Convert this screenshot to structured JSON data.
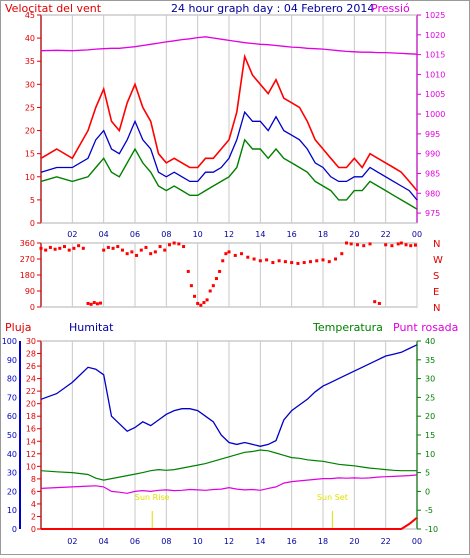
{
  "header": {
    "title": "24 hour graph day : 04 Febrero 2014",
    "left_label": "Velocitat del vent",
    "right_label": "Pressió"
  },
  "colors": {
    "gust": "#ff0000",
    "wind_avg": "#0000c8",
    "wind_low": "#008000",
    "pressure": "#e000e0",
    "direction": "#ff0000",
    "humidity": "#0000c8",
    "temperature": "#008000",
    "dewpoint": "#e000e0",
    "rain": "#ff0000",
    "sun_marker": "#e0e000",
    "grid": "#c8c8c8"
  },
  "x_ticks": [
    "02",
    "04",
    "06",
    "08",
    "10",
    "12",
    "14",
    "16",
    "18",
    "20",
    "22",
    "00"
  ],
  "chart_data": [
    {
      "type": "line",
      "name": "wind",
      "left_label": "Velocitat del vent",
      "right_label": "Pressió",
      "ylim": [
        0,
        45
      ],
      "y2lim": [
        972.5,
        1025
      ],
      "left_ticks": [
        "0",
        "5",
        "10",
        "15",
        "20",
        "25",
        "30",
        "35",
        "40",
        "45"
      ],
      "right_ticks": [
        "975",
        "980",
        "985",
        "990",
        "995",
        "1000",
        "1005",
        "1010",
        "1015",
        "1020",
        "1025"
      ],
      "x_hours": [
        0,
        1,
        2,
        3,
        3.5,
        4,
        4.5,
        5,
        5.5,
        6,
        6.5,
        7,
        7.5,
        8,
        8.5,
        9,
        9.5,
        10,
        10.5,
        11,
        11.5,
        12,
        12.5,
        13,
        13.5,
        14,
        14.5,
        15,
        15.5,
        16,
        16.5,
        17,
        17.5,
        18,
        18.5,
        19,
        19.5,
        20,
        20.5,
        21,
        21.5,
        22,
        22.5,
        23,
        23.5,
        24
      ],
      "series": [
        {
          "key": "gust",
          "values": [
            14,
            16,
            14,
            20,
            25,
            29,
            22,
            20,
            26,
            30,
            25,
            22,
            15,
            13,
            14,
            13,
            12,
            12,
            14,
            14,
            16,
            18,
            24,
            36,
            32,
            30,
            28,
            31,
            27,
            26,
            25,
            22,
            18,
            16,
            14,
            12,
            12,
            14,
            12,
            15,
            14,
            13,
            12,
            11,
            9,
            7
          ]
        },
        {
          "key": "wind_avg",
          "values": [
            11,
            12,
            12,
            14,
            18,
            20,
            16,
            15,
            18,
            22,
            18,
            16,
            11,
            10,
            11,
            10,
            9,
            9,
            11,
            11,
            12,
            14,
            18,
            24,
            22,
            22,
            20,
            23,
            20,
            19,
            18,
            16,
            13,
            12,
            10,
            9,
            9,
            10,
            10,
            12,
            11,
            10,
            9,
            8,
            7,
            5
          ]
        },
        {
          "key": "wind_low",
          "values": [
            9,
            10,
            9,
            10,
            12,
            14,
            11,
            10,
            13,
            16,
            13,
            11,
            8,
            7,
            8,
            7,
            6,
            6,
            7,
            8,
            9,
            10,
            12,
            18,
            16,
            16,
            14,
            16,
            14,
            13,
            12,
            11,
            9,
            8,
            7,
            5,
            5,
            7,
            7,
            9,
            8,
            7,
            6,
            5,
            4,
            3
          ]
        },
        {
          "key": "pressure",
          "values": [
            1016.0,
            1016.1,
            1016.0,
            1016.2,
            1016.4,
            1016.5,
            1016.6,
            1016.6,
            1016.8,
            1017.0,
            1017.3,
            1017.6,
            1017.9,
            1018.2,
            1018.5,
            1018.8,
            1019.0,
            1019.3,
            1019.5,
            1019.2,
            1018.9,
            1018.6,
            1018.3,
            1018.0,
            1017.8,
            1017.6,
            1017.5,
            1017.3,
            1017.1,
            1016.9,
            1016.8,
            1016.6,
            1016.5,
            1016.4,
            1016.2,
            1016.0,
            1015.8,
            1015.7,
            1015.6,
            1015.6,
            1015.5,
            1015.5,
            1015.4,
            1015.3,
            1015.2,
            1015.1
          ]
        }
      ]
    },
    {
      "type": "scatter",
      "name": "direction",
      "ylim": [
        0,
        360
      ],
      "left_ticks": [
        "0",
        "90",
        "180",
        "270",
        "360"
      ],
      "right_labels": [
        "N",
        "W",
        "S",
        "E",
        "N"
      ],
      "points": [
        [
          0,
          330
        ],
        [
          0.3,
          320
        ],
        [
          0.6,
          335
        ],
        [
          0.9,
          325
        ],
        [
          1.2,
          330
        ],
        [
          1.5,
          340
        ],
        [
          1.8,
          320
        ],
        [
          2.1,
          330
        ],
        [
          2.4,
          345
        ],
        [
          2.7,
          330
        ],
        [
          3.0,
          20
        ],
        [
          3.2,
          15
        ],
        [
          3.4,
          25
        ],
        [
          3.6,
          18
        ],
        [
          3.8,
          22
        ],
        [
          4.0,
          320
        ],
        [
          4.3,
          335
        ],
        [
          4.6,
          330
        ],
        [
          4.9,
          340
        ],
        [
          5.2,
          320
        ],
        [
          5.5,
          300
        ],
        [
          5.8,
          310
        ],
        [
          6.1,
          290
        ],
        [
          6.4,
          320
        ],
        [
          6.7,
          335
        ],
        [
          7.0,
          300
        ],
        [
          7.3,
          310
        ],
        [
          7.6,
          340
        ],
        [
          7.9,
          320
        ],
        [
          8.2,
          350
        ],
        [
          8.5,
          360
        ],
        [
          8.8,
          355
        ],
        [
          9.1,
          340
        ],
        [
          9.4,
          200
        ],
        [
          9.6,
          120
        ],
        [
          9.8,
          60
        ],
        [
          10.0,
          20
        ],
        [
          10.2,
          10
        ],
        [
          10.4,
          25
        ],
        [
          10.6,
          40
        ],
        [
          10.8,
          90
        ],
        [
          11.0,
          120
        ],
        [
          11.2,
          160
        ],
        [
          11.4,
          200
        ],
        [
          11.6,
          260
        ],
        [
          11.8,
          300
        ],
        [
          12.0,
          310
        ],
        [
          12.4,
          290
        ],
        [
          12.8,
          300
        ],
        [
          13.2,
          280
        ],
        [
          13.6,
          270
        ],
        [
          14.0,
          260
        ],
        [
          14.4,
          265
        ],
        [
          14.8,
          250
        ],
        [
          15.2,
          260
        ],
        [
          15.6,
          255
        ],
        [
          16.0,
          250
        ],
        [
          16.4,
          245
        ],
        [
          16.8,
          250
        ],
        [
          17.2,
          255
        ],
        [
          17.6,
          260
        ],
        [
          18.0,
          265
        ],
        [
          18.4,
          255
        ],
        [
          18.8,
          270
        ],
        [
          19.2,
          300
        ],
        [
          19.5,
          360
        ],
        [
          19.8,
          355
        ],
        [
          20.2,
          350
        ],
        [
          20.6,
          345
        ],
        [
          21.0,
          355
        ],
        [
          21.3,
          30
        ],
        [
          21.6,
          20
        ],
        [
          22.0,
          350
        ],
        [
          22.4,
          345
        ],
        [
          22.8,
          355
        ],
        [
          23.0,
          360
        ],
        [
          23.3,
          350
        ],
        [
          23.6,
          345
        ],
        [
          23.9,
          348
        ]
      ]
    },
    {
      "type": "line",
      "name": "atmosphere",
      "left_labels": [
        "Pluja",
        "Humitat",
        "Temperatura",
        "Punt rosada"
      ],
      "humidity_ticks": [
        "0",
        "10",
        "20",
        "30",
        "40",
        "50",
        "60",
        "70",
        "80",
        "90",
        "100"
      ],
      "rain_ticks": [
        "0",
        "2",
        "4",
        "6",
        "8",
        "10",
        "12",
        "14",
        "16",
        "18",
        "20",
        "22",
        "24",
        "26",
        "28",
        "30"
      ],
      "temp_ticks": [
        "-10",
        "-5",
        "0",
        "5",
        "10",
        "15",
        "20",
        "25",
        "30",
        "35",
        "40"
      ],
      "humidity_lim": [
        0,
        100
      ],
      "rain_lim": [
        0,
        30
      ],
      "temp_lim": [
        -10,
        40
      ],
      "x_hours": [
        0,
        1,
        2,
        3,
        3.5,
        4,
        4.5,
        5,
        5.5,
        6,
        6.5,
        7,
        7.5,
        8,
        8.5,
        9,
        9.5,
        10,
        10.5,
        11,
        11.5,
        12,
        12.5,
        13,
        13.5,
        14,
        14.5,
        15,
        15.5,
        16,
        16.5,
        17,
        17.5,
        18,
        18.5,
        19,
        19.5,
        20,
        20.5,
        21,
        21.5,
        22,
        22.5,
        23,
        23.5,
        24
      ],
      "series": [
        {
          "key": "humidity",
          "values": [
            69,
            72,
            78,
            86,
            85,
            82,
            60,
            56,
            52,
            54,
            57,
            55,
            58,
            61,
            63,
            64,
            64,
            63,
            60,
            57,
            50,
            46,
            45,
            46,
            45,
            44,
            45,
            47,
            58,
            63,
            66,
            69,
            73,
            76,
            78,
            80,
            82,
            84,
            86,
            88,
            90,
            92,
            93,
            94,
            96,
            98
          ]
        },
        {
          "key": "temperature",
          "values": [
            5.5,
            5.2,
            5.0,
            4.5,
            3.5,
            3.0,
            3.4,
            3.8,
            4.2,
            4.6,
            5.0,
            5.5,
            5.8,
            5.6,
            5.8,
            6.2,
            6.6,
            7.0,
            7.4,
            8.0,
            8.6,
            9.2,
            9.8,
            10.4,
            10.6,
            11.0,
            10.8,
            10.2,
            9.6,
            9.0,
            8.8,
            8.4,
            8.2,
            8.0,
            7.6,
            7.2,
            7.0,
            6.8,
            6.5,
            6.2,
            6.0,
            5.8,
            5.6,
            5.5,
            5.5,
            5.5
          ]
        },
        {
          "key": "dewpoint",
          "values": [
            0.8,
            1.0,
            1.2,
            1.4,
            1.5,
            1.2,
            0.0,
            -0.2,
            -0.5,
            0.0,
            0.2,
            0.0,
            0.3,
            0.4,
            0.2,
            0.3,
            0.5,
            0.4,
            0.3,
            0.5,
            0.6,
            1.0,
            0.6,
            0.4,
            0.5,
            0.3,
            0.8,
            1.2,
            2.2,
            2.6,
            2.8,
            3.0,
            3.2,
            3.4,
            3.4,
            3.6,
            3.5,
            3.6,
            3.5,
            3.6,
            3.8,
            3.9,
            4.0,
            4.1,
            4.2,
            4.4
          ]
        },
        {
          "key": "rain",
          "values": [
            0,
            0,
            0,
            0,
            0,
            0,
            0,
            0,
            0,
            0,
            0,
            0,
            0,
            0,
            0,
            0,
            0,
            0,
            0,
            0,
            0,
            0,
            0,
            0,
            0,
            0,
            0,
            0,
            0,
            0,
            0,
            0,
            0,
            0,
            0,
            0,
            0,
            0,
            0,
            0,
            0,
            0,
            0,
            0,
            0.8,
            1.8
          ]
        }
      ],
      "annotations": [
        {
          "label": "Sun Rise",
          "hour": 7.1
        },
        {
          "label": "Sun Set",
          "hour": 18.6
        }
      ]
    }
  ]
}
